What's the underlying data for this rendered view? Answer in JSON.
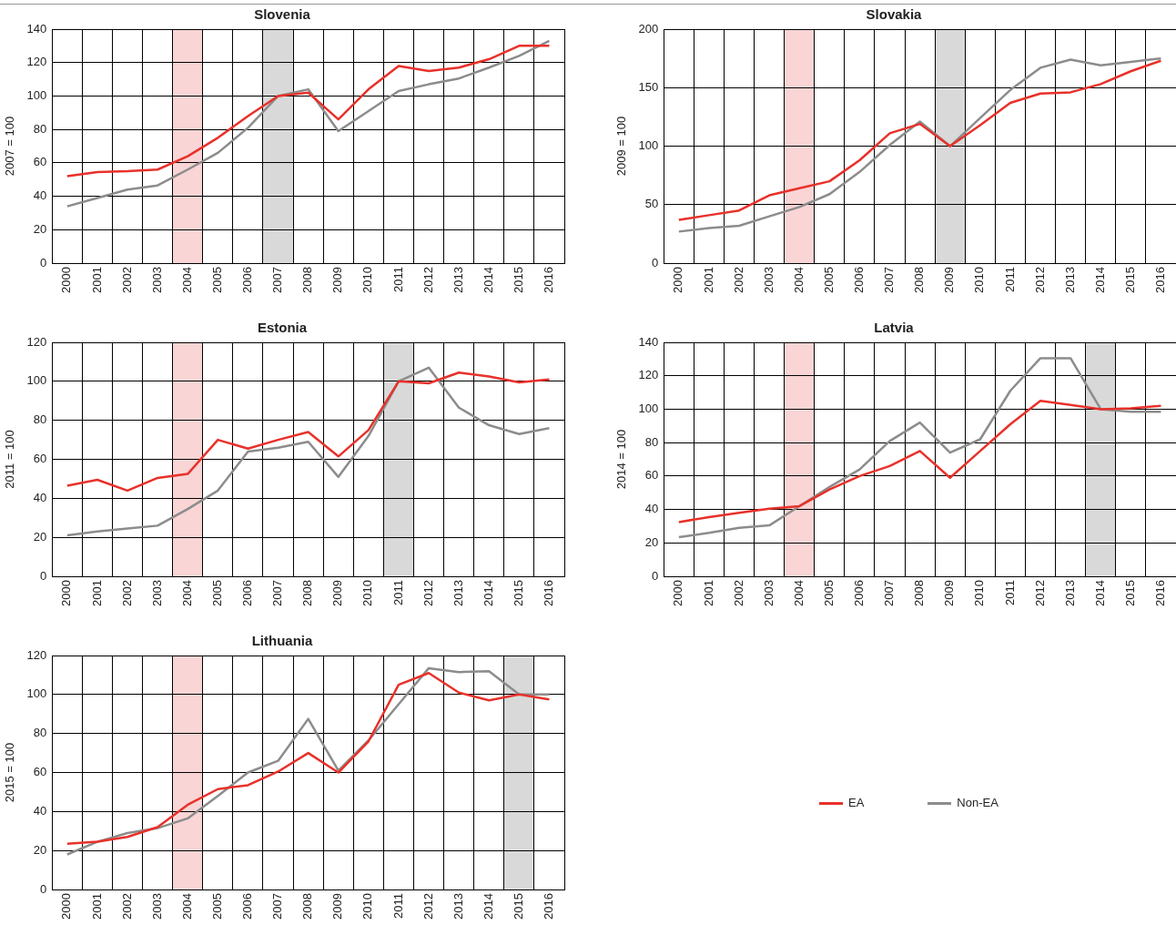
{
  "chart_data": [
    {
      "type": "line",
      "title": "Slovenia",
      "ylabel": "2007 = 100",
      "categories": [
        "2000",
        "2001",
        "2002",
        "2003",
        "2004",
        "2005",
        "2006",
        "2007",
        "2008",
        "2009",
        "2010",
        "2011",
        "2012",
        "2013",
        "2014",
        "2015",
        "2016"
      ],
      "ylim": [
        0,
        140
      ],
      "yticks": [
        0,
        20,
        40,
        60,
        80,
        100,
        120,
        140
      ],
      "grid": true,
      "legend": false,
      "marker": "none",
      "series": [
        {
          "color": "#e8312a",
          "values": [
            52,
            54.5,
            55,
            56,
            64,
            75,
            88,
            100,
            102,
            86,
            104,
            118,
            115,
            117,
            122,
            130,
            130
          ]
        },
        {
          "color": "#8c8c8c",
          "values": [
            34,
            39,
            44,
            46.5,
            56,
            66,
            81,
            100,
            104,
            79,
            91,
            103,
            107,
            110.5,
            117,
            124,
            133
          ]
        }
      ],
      "bands": [
        {
          "axis": "x",
          "from": "2004",
          "to": "2004",
          "color": "#f9d5d5"
        },
        {
          "axis": "x",
          "from": "2007",
          "to": "2007",
          "color": "#d9d9d9"
        }
      ]
    },
    {
      "type": "line",
      "title": "Slovakia",
      "ylabel": "2009 = 100",
      "categories": [
        "2000",
        "2001",
        "2002",
        "2003",
        "2004",
        "2005",
        "2006",
        "2007",
        "2008",
        "2009",
        "2010",
        "2011",
        "2012",
        "2013",
        "2014",
        "2015",
        "2016"
      ],
      "ylim": [
        0,
        200
      ],
      "yticks": [
        0,
        50,
        100,
        150,
        200
      ],
      "grid": true,
      "legend": false,
      "marker": "none",
      "series": [
        {
          "color": "#e8312a",
          "values": [
            37,
            41,
            45,
            58,
            64,
            70,
            88,
            111,
            119,
            100,
            118,
            137,
            145,
            146,
            153,
            164,
            173
          ]
        },
        {
          "color": "#8c8c8c",
          "values": [
            27,
            30,
            32,
            40,
            48,
            59,
            78,
            101,
            121,
            100,
            124,
            148,
            167,
            174,
            169,
            172,
            175
          ]
        }
      ],
      "bands": [
        {
          "axis": "x",
          "from": "2004",
          "to": "2004",
          "color": "#f9d5d5"
        },
        {
          "axis": "x",
          "from": "2009",
          "to": "2009",
          "color": "#d9d9d9"
        }
      ]
    },
    {
      "type": "line",
      "title": "Estonia",
      "ylabel": "2011 = 100",
      "categories": [
        "2000",
        "2001",
        "2002",
        "2003",
        "2004",
        "2005",
        "2006",
        "2007",
        "2008",
        "2009",
        "2010",
        "2011",
        "2012",
        "2013",
        "2014",
        "2015",
        "2016"
      ],
      "ylim": [
        0,
        120
      ],
      "yticks": [
        0,
        20,
        40,
        60,
        80,
        100,
        120
      ],
      "grid": true,
      "legend": false,
      "marker": "none",
      "series": [
        {
          "color": "#e8312a",
          "values": [
            46.5,
            49.5,
            44,
            50.5,
            52.5,
            70,
            65.5,
            70,
            74,
            61.5,
            75,
            100,
            99,
            104.5,
            102.5,
            99.5,
            101
          ]
        },
        {
          "color": "#8c8c8c",
          "values": [
            21,
            23,
            24.5,
            26,
            34.5,
            44,
            64,
            66,
            69,
            51,
            72,
            100,
            107,
            86.5,
            77.5,
            73,
            76
          ]
        }
      ],
      "bands": [
        {
          "axis": "x",
          "from": "2004",
          "to": "2004",
          "color": "#f9d5d5"
        },
        {
          "axis": "x",
          "from": "2011",
          "to": "2011",
          "color": "#d9d9d9"
        }
      ]
    },
    {
      "type": "line",
      "title": "Latvia",
      "ylabel": "2014 = 100",
      "categories": [
        "2000",
        "2001",
        "2002",
        "2003",
        "2004",
        "2005",
        "2006",
        "2007",
        "2008",
        "2009",
        "2010",
        "2011",
        "2012",
        "2013",
        "2014",
        "2015",
        "2016"
      ],
      "ylim": [
        0,
        140
      ],
      "yticks": [
        0,
        20,
        40,
        60,
        80,
        100,
        120,
        140
      ],
      "grid": true,
      "legend": false,
      "marker": "none",
      "series": [
        {
          "color": "#e8312a",
          "values": [
            32.5,
            35.5,
            38,
            40.5,
            42,
            52,
            60,
            66,
            75,
            59,
            75,
            91,
            105,
            102.5,
            100,
            100.5,
            102
          ]
        },
        {
          "color": "#8c8c8c",
          "values": [
            23.5,
            26,
            29,
            30.5,
            42,
            53.5,
            64,
            81,
            92,
            74,
            82,
            111,
            130.5,
            130.5,
            100,
            98.5,
            98.5
          ]
        }
      ],
      "bands": [
        {
          "axis": "x",
          "from": "2004",
          "to": "2004",
          "color": "#f9d5d5"
        },
        {
          "axis": "x",
          "from": "2014",
          "to": "2014",
          "color": "#d9d9d9"
        }
      ]
    },
    {
      "type": "line",
      "title": "Lithuania",
      "ylabel": "2015 = 100",
      "categories": [
        "2000",
        "2001",
        "2002",
        "2003",
        "2004",
        "2005",
        "2006",
        "2007",
        "2008",
        "2009",
        "2010",
        "2011",
        "2012",
        "2013",
        "2014",
        "2015",
        "2016"
      ],
      "ylim": [
        0,
        120
      ],
      "yticks": [
        0,
        20,
        40,
        60,
        80,
        100,
        120
      ],
      "grid": true,
      "legend": "right",
      "marker": "none",
      "series": [
        {
          "name": "EA",
          "color": "#e8312a",
          "values": [
            23.5,
            24.5,
            27,
            32,
            43.5,
            51.5,
            53.5,
            60.5,
            70,
            60,
            76,
            105,
            111,
            101,
            97,
            100,
            97.5
          ]
        },
        {
          "name": "Non-EA",
          "color": "#8c8c8c",
          "values": [
            18,
            24.5,
            29,
            31.5,
            36.5,
            48,
            60,
            66,
            87.5,
            61,
            76.5,
            95,
            113.5,
            111.5,
            112,
            100,
            100
          ]
        }
      ],
      "bands": [
        {
          "axis": "x",
          "from": "2004",
          "to": "2004",
          "color": "#f9d5d5"
        },
        {
          "axis": "x",
          "from": "2015",
          "to": "2015",
          "color": "#d9d9d9"
        }
      ]
    }
  ]
}
